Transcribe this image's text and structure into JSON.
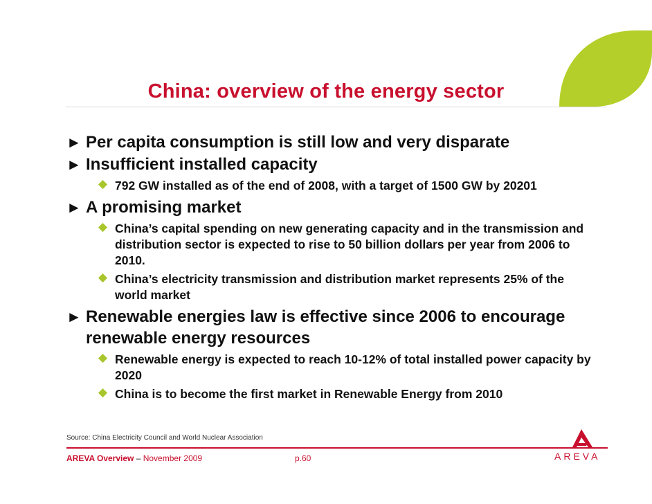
{
  "title": "China: overview of the energy sector",
  "bullets": [
    {
      "text": "Per capita consumption is still low and very disparate",
      "subs": []
    },
    {
      "text": "Insufficient installed capacity",
      "subs": [
        "792 GW installed as of the end of 2008, with a target of 1500 GW by 20201"
      ]
    },
    {
      "text": "A promising market",
      "subs": [
        "China’s capital spending on new generating capacity and in the transmission and distribution sector is expected to rise to 50 billion dollars per year from 2006 to 2010.",
        "China’s electricity transmission and distribution market represents 25% of the world market"
      ]
    },
    {
      "text": "Renewable energies law is effective since 2006 to encourage renewable energy resources",
      "subs": [
        "Renewable energy is expected to reach 10-12% of total installed power capacity by 2020",
        "China is to become the first market in Renewable Energy from 2010"
      ]
    }
  ],
  "source": "Source: China Electricity Council and World Nuclear Association",
  "footer": {
    "company": "AREVA Overview",
    "separator": " – ",
    "date": "November 2009",
    "page": "p.60"
  },
  "logo": {
    "text": "AREVA"
  },
  "colors": {
    "accent": "#c8102e",
    "leaf": "#b5cf2a",
    "bullet_diamond": "#a8c62b"
  },
  "icons": {
    "main_bullet": "triangle-right-icon",
    "sub_bullet": "diamond-icon"
  }
}
